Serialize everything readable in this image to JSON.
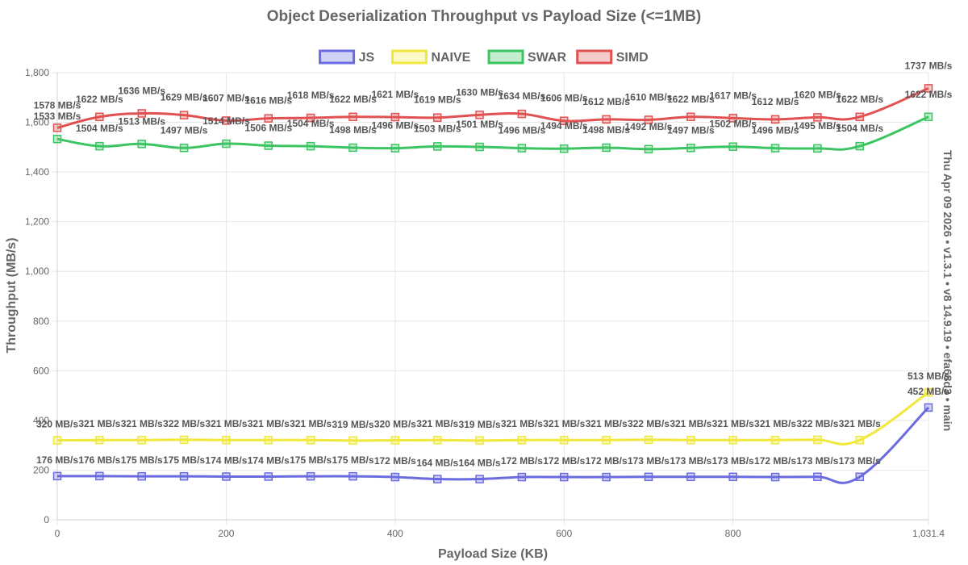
{
  "chart_data": {
    "type": "line",
    "title": "Object Deserialization Throughput vs Payload Size (<=1MB)",
    "xlabel": "Payload Size (KB)",
    "ylabel": "Throughput (MB/s)",
    "side_label": "Thu Apr 09 2026 • v1.3.1 • v8 14.9.19 • efa68d3 • main",
    "xlim": [
      0,
      1031.4
    ],
    "ylim": [
      0,
      1800
    ],
    "x_ticks": [
      0,
      200,
      400,
      600,
      800,
      1031.4
    ],
    "x_tick_labels": [
      "0",
      "200",
      "400",
      "600",
      "800",
      "1,031.4"
    ],
    "y_ticks": [
      0,
      200,
      400,
      600,
      800,
      1000,
      1200,
      1400,
      1600,
      1800
    ],
    "y_tick_labels": [
      "0",
      "200",
      "400",
      "600",
      "800",
      "1,000",
      "1,200",
      "1,400",
      "1,600",
      "1,800"
    ],
    "grid": true,
    "legend_position": "top",
    "x": [
      0,
      50,
      100,
      150,
      200,
      250,
      300,
      350,
      400,
      450,
      500,
      550,
      600,
      650,
      700,
      750,
      800,
      850,
      900,
      950,
      1031.4
    ],
    "value_suffix": " MB/s",
    "series": [
      {
        "name": "JS",
        "color": "#6b6be0",
        "fill": "rgba(107,107,224,0.3)",
        "values": [
          176,
          176,
          175,
          175,
          174,
          174,
          175,
          175,
          172,
          164,
          164,
          172,
          172,
          172,
          173,
          173,
          173,
          172,
          173,
          173,
          452
        ]
      },
      {
        "name": "NAIVE",
        "color": "#f0e83c",
        "fill": "rgba(240,232,60,0.3)",
        "values": [
          320,
          321,
          321,
          322,
          321,
          321,
          321,
          319,
          320,
          321,
          319,
          321,
          321,
          321,
          322,
          321,
          321,
          321,
          322,
          321,
          513
        ]
      },
      {
        "name": "SWAR",
        "color": "#3cc462",
        "fill": "rgba(60,196,98,0.3)",
        "values": [
          1533,
          1504,
          1513,
          1497,
          1514,
          1506,
          1504,
          1498,
          1496,
          1503,
          1501,
          1496,
          1494,
          1498,
          1492,
          1497,
          1502,
          1496,
          1495,
          1504,
          1622
        ]
      },
      {
        "name": "SIMD",
        "color": "#e05252",
        "fill": "rgba(224,82,82,0.3)",
        "values": [
          1578,
          1622,
          1636,
          1629,
          1607,
          1616,
          1618,
          1622,
          1621,
          1619,
          1630,
          1634,
          1606,
          1612,
          1610,
          1622,
          1617,
          1612,
          1620,
          1622,
          1737
        ]
      }
    ]
  }
}
